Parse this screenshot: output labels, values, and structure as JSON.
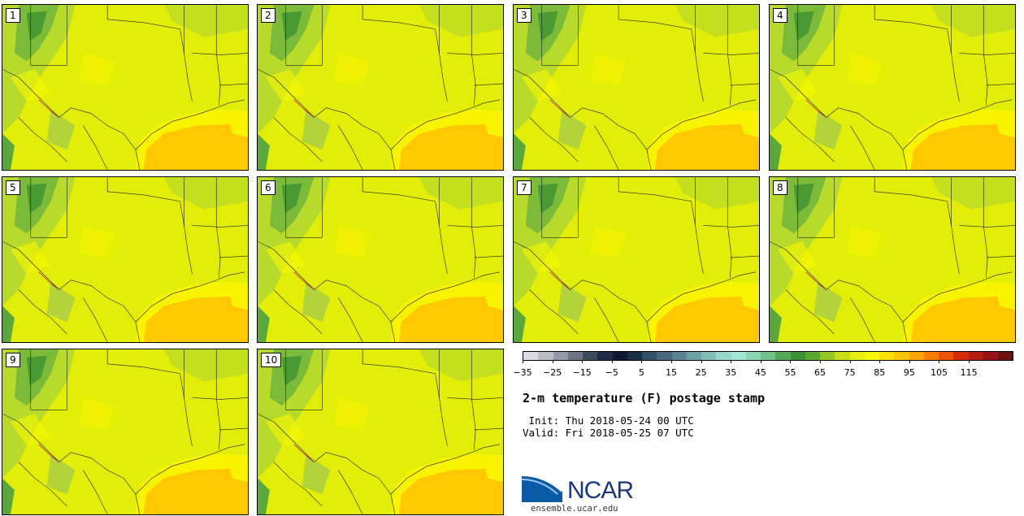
{
  "panels": [
    "1",
    "2",
    "3",
    "4",
    "5",
    "6",
    "7",
    "8",
    "9",
    "10"
  ],
  "colorbar": {
    "colors": [
      "#dcdce6",
      "#bcbcc8",
      "#9498a8",
      "#6c7488",
      "#3c4a5e",
      "#1e2c44",
      "#0f1a30",
      "#1c2e46",
      "#34506a",
      "#47687e",
      "#5a8492",
      "#6ea0a4",
      "#84bcba",
      "#98d8cc",
      "#a2e6d4",
      "#8ad6b0",
      "#70c288",
      "#52aa58",
      "#3e9236",
      "#5aa82e",
      "#96c620",
      "#c8de14",
      "#e6ee0e",
      "#f8f800",
      "#fae000",
      "#ffc400",
      "#fca400",
      "#f87c00",
      "#ee5400",
      "#d22c00",
      "#b41c10",
      "#941418",
      "#6e1010"
    ],
    "labels": [
      "−35",
      "−25",
      "−15",
      "−5",
      "5",
      "15",
      "25",
      "35",
      "45",
      "55",
      "65",
      "75",
      "85",
      "95",
      "105",
      "115"
    ]
  },
  "title": "2-m temperature (F) postage stamp",
  "init_line": " Init: Thu 2018-05-24 00 UTC",
  "valid_line": "Valid: Fri 2018-05-25 07 UTC",
  "logo_text": "NCAR",
  "url": "ensemble.ucar.edu"
}
